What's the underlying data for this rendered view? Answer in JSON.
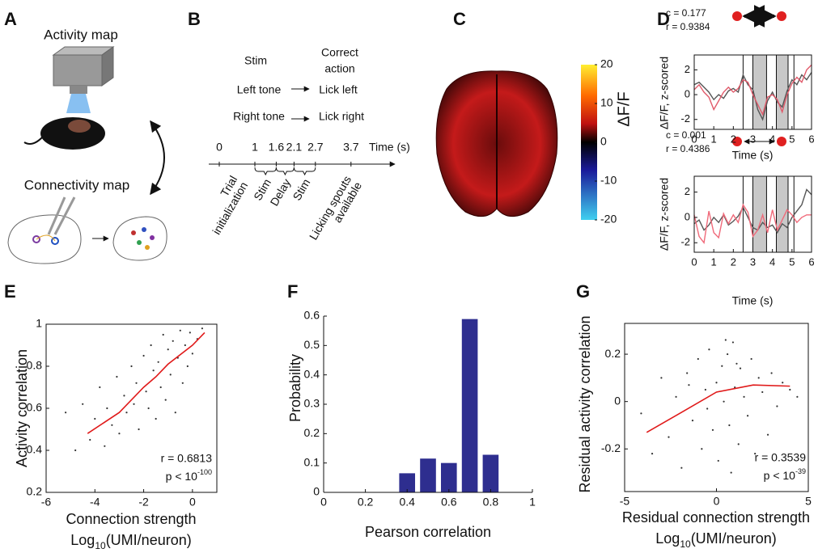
{
  "panel_labels": [
    "A",
    "B",
    "C",
    "D",
    "E",
    "F",
    "G"
  ],
  "panel_a": {
    "activity_map": "Activity map",
    "connectivity_map": "Connectivity map"
  },
  "panel_b": {
    "stim_header": "Stim",
    "action_header": [
      "Correct",
      "action"
    ],
    "rows": [
      {
        "stim": "Left tone",
        "action": "Lick left"
      },
      {
        "stim": "Right tone",
        "action": "Lick right"
      }
    ]
  },
  "chart_data": [
    {
      "type": "timeline",
      "xlabel": "Time (s)",
      "xticks": [
        0,
        1,
        1.6,
        2.1,
        2.7,
        3.7
      ],
      "epochs": [
        {
          "label": [
            "Trial",
            "initialization"
          ],
          "start": 0,
          "end": 1
        },
        {
          "label": [
            "Stim"
          ],
          "start": 1,
          "end": 1.6,
          "brace": true
        },
        {
          "label": [
            "Delay"
          ],
          "start": 1.6,
          "end": 2.1,
          "brace": true
        },
        {
          "label": [
            "Stim"
          ],
          "start": 2.1,
          "end": 2.7,
          "brace": true
        },
        {
          "label": [
            "Licking spouts",
            "available"
          ],
          "start": 3.7
        }
      ]
    },
    {
      "type": "colorbar",
      "label": "ΔF/F",
      "clim": [
        -20,
        20
      ],
      "ticks": [
        20,
        10,
        0,
        -10,
        -20
      ]
    },
    {
      "type": "line",
      "annotations": [
        "c = 0.177",
        "r = 0.9384"
      ],
      "xlabel": "Time (s)",
      "ylabel": "ΔF/F, z-scored",
      "xlim": [
        0,
        6
      ],
      "ylim": [
        -2.8,
        3.2
      ],
      "xticks": [
        0,
        1,
        2,
        3,
        4,
        5,
        6
      ],
      "yticks": [
        -2,
        0,
        2
      ],
      "stim_periods": [
        [
          3.0,
          3.7
        ],
        [
          4.2,
          4.8
        ]
      ],
      "events": [
        2.5,
        5.1
      ],
      "x": [
        0,
        0.25,
        0.5,
        0.75,
        1,
        1.25,
        1.5,
        1.75,
        2,
        2.25,
        2.5,
        2.75,
        3,
        3.25,
        3.5,
        3.75,
        4,
        4.25,
        4.5,
        4.75,
        5,
        5.25,
        5.5,
        5.75,
        6
      ],
      "series": [
        {
          "color": "#555555",
          "values": [
            0.8,
            1.0,
            0.6,
            0.2,
            -0.4,
            0.0,
            -0.3,
            0.3,
            0.5,
            0.2,
            1.6,
            0.8,
            0.4,
            -1.2,
            -2.0,
            -0.5,
            0.2,
            -0.6,
            -1.0,
            0.3,
            1.2,
            0.8,
            1.6,
            1.2,
            1.8
          ]
        },
        {
          "color": "#e05a6a",
          "values": [
            0.4,
            0.8,
            0.2,
            -0.2,
            -1.2,
            -0.5,
            0.2,
            0.6,
            0.2,
            0.5,
            1.2,
            1.0,
            0.0,
            -0.8,
            -1.6,
            -0.2,
            0.0,
            -0.4,
            -1.4,
            0.0,
            0.9,
            1.4,
            1.0,
            2.0,
            2.4
          ]
        }
      ]
    },
    {
      "type": "line",
      "annotations": [
        "c = 0.001",
        "r = 0.4386"
      ],
      "xlabel": "Time (s)",
      "ylabel": "ΔF/F, z-scored",
      "xlim": [
        0,
        6
      ],
      "ylim": [
        -2.75,
        3.25
      ],
      "xticks": [
        0,
        1,
        2,
        3,
        4,
        5,
        6
      ],
      "yticks": [
        -2,
        0,
        2
      ],
      "stim_periods": [
        [
          3.0,
          3.7
        ],
        [
          4.2,
          4.8
        ]
      ],
      "events": [
        2.5,
        5.1
      ],
      "x": [
        0,
        0.25,
        0.5,
        0.75,
        1,
        1.25,
        1.5,
        1.75,
        2,
        2.25,
        2.5,
        2.75,
        3,
        3.25,
        3.5,
        3.75,
        4,
        4.25,
        4.5,
        4.75,
        5,
        5.25,
        5.5,
        5.75,
        6
      ],
      "series": [
        {
          "color": "#555555",
          "values": [
            -0.5,
            -0.2,
            -1.0,
            -0.6,
            0.0,
            -0.4,
            0.2,
            -0.6,
            -0.3,
            0.1,
            0.8,
            0.0,
            -0.8,
            -1.0,
            -0.4,
            -0.8,
            -0.6,
            -1.2,
            -0.5,
            -0.8,
            0.0,
            0.5,
            1.0,
            2.2,
            1.8
          ]
        },
        {
          "color": "#f06a7a",
          "values": [
            0.2,
            -1.5,
            -2.0,
            0.5,
            -1.2,
            -1.6,
            0.3,
            -0.5,
            0.2,
            -0.4,
            1.0,
            0.4,
            -1.5,
            -1.0,
            0.2,
            -1.2,
            0.6,
            -1.0,
            -0.2,
            0.6,
            0.2,
            -0.4,
            0.0,
            0.2,
            0.2
          ]
        }
      ]
    },
    {
      "type": "scatter",
      "ylabel": "Activity correlation",
      "xlabel": "Connection strength",
      "xlabel2": {
        "base": "Log",
        "sub": "10",
        "rest": "(UMI/neuron)"
      },
      "stats": {
        "r": "r = 0.6813",
        "p": "p < 10",
        "p_exponent": "-100"
      },
      "xlim": [
        -6,
        1
      ],
      "ylim": [
        0.2,
        1
      ],
      "xticks": [
        -6,
        -4,
        -2,
        0
      ],
      "yticks": [
        0.2,
        0.4,
        0.6,
        0.8,
        1
      ],
      "color": "#333333",
      "x": [
        -5.2,
        -4.8,
        -4.5,
        -4.2,
        -4.0,
        -3.8,
        -3.6,
        -3.5,
        -3.3,
        -3.1,
        -3.0,
        -2.8,
        -2.7,
        -2.5,
        -2.4,
        -2.3,
        -2.2,
        -2.0,
        -1.9,
        -1.8,
        -1.7,
        -1.6,
        -1.5,
        -1.4,
        -1.3,
        -1.2,
        -1.1,
        -1.0,
        -0.9,
        -0.8,
        -0.7,
        -0.6,
        -0.5,
        -0.4,
        -0.3,
        -0.2,
        -0.1,
        0.0,
        0.2,
        0.4
      ],
      "y": [
        0.58,
        0.4,
        0.62,
        0.45,
        0.55,
        0.7,
        0.42,
        0.6,
        0.52,
        0.75,
        0.48,
        0.66,
        0.58,
        0.8,
        0.62,
        0.72,
        0.5,
        0.85,
        0.68,
        0.6,
        0.9,
        0.78,
        0.55,
        0.82,
        0.7,
        0.95,
        0.64,
        0.88,
        0.76,
        0.92,
        0.58,
        0.84,
        0.97,
        0.72,
        0.9,
        0.8,
        0.96,
        0.86,
        0.93,
        0.98
      ],
      "fit": {
        "color": "#e01a1a",
        "x": [
          -4.3,
          -3,
          -2,
          -1.5,
          -1,
          0,
          0.5
        ],
        "y": [
          0.48,
          0.58,
          0.7,
          0.75,
          0.81,
          0.9,
          0.96
        ]
      }
    },
    {
      "type": "histogram",
      "ylabel": "Probability",
      "xlabel": "Pearson correlation",
      "xlim": [
        0,
        1
      ],
      "ylim": [
        0,
        0.6
      ],
      "xticks": [
        0,
        0.2,
        0.4,
        0.6,
        0.8,
        1
      ],
      "yticks": [
        0,
        0.1,
        0.2,
        0.3,
        0.4,
        0.5,
        0.6
      ],
      "color": "#2e2e8f",
      "bins": [
        0.35,
        0.45,
        0.55,
        0.65,
        0.75,
        0.85
      ],
      "values": [
        0.065,
        0.115,
        0.1,
        0.59,
        0.128
      ]
    },
    {
      "type": "scatter",
      "ylabel": "Residual activity correlation",
      "xlabel": "Residual connection strength",
      "xlabel2": {
        "base": "Log",
        "sub": "10",
        "rest": "(UMI/neuron)"
      },
      "stats": {
        "r": "r = 0.3539",
        "p": "p < 10",
        "p_exponent": "-39"
      },
      "xlim": [
        -5,
        5
      ],
      "ylim": [
        -0.38,
        0.33
      ],
      "xticks": [
        -5,
        0,
        5
      ],
      "yticks": [
        -0.2,
        0,
        0.2
      ],
      "color": "#333333",
      "x": [
        -4.1,
        -3.5,
        -3.0,
        -2.6,
        -2.2,
        -1.9,
        -1.6,
        -1.3,
        -1.0,
        -0.8,
        -0.6,
        -0.4,
        -0.2,
        0.0,
        0.1,
        0.3,
        0.4,
        0.6,
        0.7,
        0.9,
        1.0,
        1.2,
        1.3,
        1.5,
        1.7,
        1.9,
        2.1,
        2.3,
        2.5,
        2.8,
        3.0,
        3.3,
        3.6,
        4.0,
        4.4,
        0.5,
        -0.5,
        1.1,
        0.8,
        -1.5
      ],
      "y": [
        -0.05,
        -0.22,
        0.1,
        -0.15,
        0.02,
        -0.28,
        0.12,
        -0.08,
        0.18,
        -0.2,
        0.05,
        0.22,
        -0.12,
        0.08,
        -0.25,
        0.15,
        0.0,
        0.2,
        -0.1,
        0.25,
        0.06,
        -0.18,
        0.14,
        0.02,
        -0.06,
        0.18,
        -0.22,
        0.1,
        0.04,
        -0.14,
        0.12,
        -0.02,
        0.08,
        0.05,
        0.02,
        0.26,
        -0.03,
        0.16,
        -0.3,
        0.07
      ],
      "fit": {
        "color": "#e01a1a",
        "x": [
          -3.8,
          -2,
          0,
          2,
          4
        ],
        "y": [
          -0.13,
          -0.05,
          0.04,
          0.07,
          0.065
        ]
      }
    }
  ]
}
